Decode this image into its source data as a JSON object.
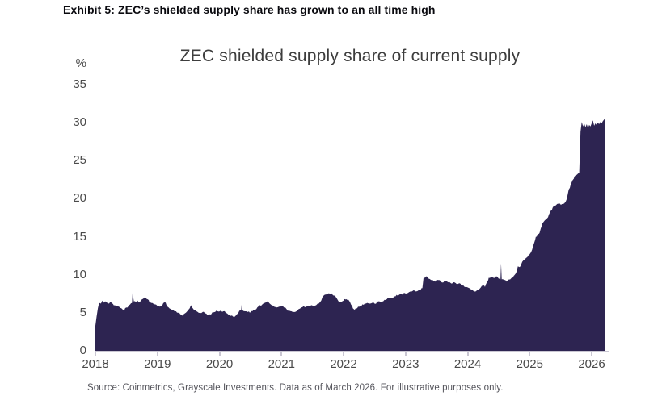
{
  "exhibit_title": "Exhibit 5: ZEC’s shielded supply share has grown to an all time high",
  "source": "Source: Coinmetrics, Grayscale Investments. Data as of March 2026. For illustrative purposes only.",
  "colors": {
    "area_fill": "#2d2451",
    "axis_line": "#c9c6d2",
    "heading_text": "#0a0a0f",
    "title_text": "#3d3d3d",
    "tick_text": "#4a4a4a",
    "source_text": "#55555c"
  },
  "chart_data": {
    "type": "area",
    "title": "ZEC shielded supply share of current supply",
    "ylabel": "%",
    "xlabel": "",
    "ylim": [
      0,
      35
    ],
    "xlim": [
      2018,
      2026.25
    ],
    "grid": false,
    "legend_position": "none",
    "y_ticks": [
      35,
      30,
      25,
      20,
      15,
      10,
      5,
      0
    ],
    "x_ticks": [
      2018,
      2019,
      2020,
      2021,
      2022,
      2023,
      2024,
      2025,
      2026
    ],
    "noise_amplitude": 0.14,
    "series": [
      {
        "name": "ZEC shielded supply share of current supply (%)",
        "points": [
          [
            2018.0,
            3.3
          ],
          [
            2018.02,
            4.5
          ],
          [
            2018.04,
            5.6
          ],
          [
            2018.06,
            6.3
          ],
          [
            2018.09,
            6.2
          ],
          [
            2018.11,
            6.6
          ],
          [
            2018.13,
            6.3
          ],
          [
            2018.16,
            6.5
          ],
          [
            2018.19,
            6.3
          ],
          [
            2018.22,
            6.2
          ],
          [
            2018.25,
            6.4
          ],
          [
            2018.28,
            6.2
          ],
          [
            2018.31,
            6.0
          ],
          [
            2018.35,
            5.9
          ],
          [
            2018.38,
            5.8
          ],
          [
            2018.42,
            5.6
          ],
          [
            2018.45,
            5.4
          ],
          [
            2018.48,
            5.6
          ],
          [
            2018.52,
            5.7
          ],
          [
            2018.56,
            6.1
          ],
          [
            2018.59,
            6.3
          ],
          [
            2018.6,
            7.6
          ],
          [
            2018.62,
            6.5
          ],
          [
            2018.65,
            6.4
          ],
          [
            2018.68,
            6.6
          ],
          [
            2018.71,
            6.4
          ],
          [
            2018.74,
            6.7
          ],
          [
            2018.78,
            6.9
          ],
          [
            2018.81,
            7.0
          ],
          [
            2018.84,
            6.8
          ],
          [
            2018.87,
            6.4
          ],
          [
            2018.9,
            6.3
          ],
          [
            2018.93,
            6.2
          ],
          [
            2018.96,
            6.1
          ],
          [
            2019.0,
            5.9
          ],
          [
            2019.04,
            5.8
          ],
          [
            2019.08,
            6.0
          ],
          [
            2019.12,
            6.4
          ],
          [
            2019.15,
            5.9
          ],
          [
            2019.18,
            5.7
          ],
          [
            2019.22,
            5.5
          ],
          [
            2019.26,
            5.3
          ],
          [
            2019.3,
            5.2
          ],
          [
            2019.34,
            5.0
          ],
          [
            2019.37,
            4.8
          ],
          [
            2019.4,
            4.6
          ],
          [
            2019.44,
            4.9
          ],
          [
            2019.48,
            5.2
          ],
          [
            2019.52,
            5.6
          ],
          [
            2019.54,
            6.0
          ],
          [
            2019.57,
            5.6
          ],
          [
            2019.61,
            5.3
          ],
          [
            2019.65,
            5.1
          ],
          [
            2019.69,
            5.0
          ],
          [
            2019.73,
            5.1
          ],
          [
            2019.77,
            4.9
          ],
          [
            2019.81,
            4.7
          ],
          [
            2019.85,
            4.8
          ],
          [
            2019.89,
            5.0
          ],
          [
            2019.93,
            5.1
          ],
          [
            2019.97,
            5.2
          ],
          [
            2020.02,
            5.3
          ],
          [
            2020.06,
            5.2
          ],
          [
            2020.1,
            5.0
          ],
          [
            2020.14,
            4.8
          ],
          [
            2020.18,
            4.6
          ],
          [
            2020.22,
            4.5
          ],
          [
            2020.26,
            4.6
          ],
          [
            2020.3,
            4.9
          ],
          [
            2020.33,
            5.3
          ],
          [
            2020.35,
            5.4
          ],
          [
            2020.36,
            6.2
          ],
          [
            2020.37,
            5.4
          ],
          [
            2020.41,
            5.2
          ],
          [
            2020.45,
            5.1
          ],
          [
            2020.49,
            5.0
          ],
          [
            2020.53,
            5.2
          ],
          [
            2020.57,
            5.4
          ],
          [
            2020.61,
            5.7
          ],
          [
            2020.65,
            6.0
          ],
          [
            2020.69,
            6.1
          ],
          [
            2020.73,
            6.3
          ],
          [
            2020.77,
            6.5
          ],
          [
            2020.8,
            6.3
          ],
          [
            2020.84,
            6.0
          ],
          [
            2020.88,
            5.8
          ],
          [
            2020.92,
            5.7
          ],
          [
            2020.96,
            5.8
          ],
          [
            2021.0,
            5.9
          ],
          [
            2021.04,
            5.7
          ],
          [
            2021.08,
            5.5
          ],
          [
            2021.12,
            5.3
          ],
          [
            2021.16,
            5.2
          ],
          [
            2021.2,
            5.1
          ],
          [
            2021.24,
            5.2
          ],
          [
            2021.28,
            5.5
          ],
          [
            2021.32,
            5.7
          ],
          [
            2021.36,
            5.9
          ],
          [
            2021.4,
            5.8
          ],
          [
            2021.44,
            5.9
          ],
          [
            2021.48,
            6.0
          ],
          [
            2021.52,
            5.9
          ],
          [
            2021.56,
            6.0
          ],
          [
            2021.6,
            6.2
          ],
          [
            2021.64,
            6.6
          ],
          [
            2021.67,
            7.2
          ],
          [
            2021.7,
            7.4
          ],
          [
            2021.74,
            7.5
          ],
          [
            2021.78,
            7.5
          ],
          [
            2021.82,
            7.4
          ],
          [
            2021.86,
            7.3
          ],
          [
            2021.89,
            6.9
          ],
          [
            2021.92,
            6.5
          ],
          [
            2021.96,
            6.4
          ],
          [
            2022.0,
            6.6
          ],
          [
            2022.04,
            6.8
          ],
          [
            2022.08,
            6.7
          ],
          [
            2022.12,
            6.1
          ],
          [
            2022.15,
            5.6
          ],
          [
            2022.18,
            5.4
          ],
          [
            2022.22,
            5.6
          ],
          [
            2022.26,
            5.8
          ],
          [
            2022.3,
            6.1
          ],
          [
            2022.34,
            6.2
          ],
          [
            2022.38,
            6.3
          ],
          [
            2022.42,
            6.2
          ],
          [
            2022.46,
            6.3
          ],
          [
            2022.5,
            6.2
          ],
          [
            2022.54,
            6.4
          ],
          [
            2022.58,
            6.5
          ],
          [
            2022.62,
            6.5
          ],
          [
            2022.66,
            6.7
          ],
          [
            2022.7,
            6.8
          ],
          [
            2022.74,
            6.9
          ],
          [
            2022.78,
            7.0
          ],
          [
            2022.82,
            7.2
          ],
          [
            2022.86,
            7.3
          ],
          [
            2022.9,
            7.4
          ],
          [
            2022.95,
            7.4
          ],
          [
            2023.0,
            7.5
          ],
          [
            2023.04,
            7.6
          ],
          [
            2023.08,
            7.8
          ],
          [
            2023.12,
            7.9
          ],
          [
            2023.16,
            7.8
          ],
          [
            2023.2,
            7.9
          ],
          [
            2023.24,
            8.0
          ],
          [
            2023.27,
            8.2
          ],
          [
            2023.29,
            9.6
          ],
          [
            2023.33,
            9.8
          ],
          [
            2023.37,
            9.5
          ],
          [
            2023.41,
            9.3
          ],
          [
            2023.45,
            9.2
          ],
          [
            2023.49,
            9.1
          ],
          [
            2023.53,
            9.3
          ],
          [
            2023.57,
            9.1
          ],
          [
            2023.61,
            9.0
          ],
          [
            2023.65,
            9.2
          ],
          [
            2023.69,
            9.0
          ],
          [
            2023.73,
            8.9
          ],
          [
            2023.77,
            9.0
          ],
          [
            2023.81,
            8.9
          ],
          [
            2023.85,
            8.8
          ],
          [
            2023.89,
            8.7
          ],
          [
            2023.93,
            8.6
          ],
          [
            2023.97,
            8.4
          ],
          [
            2024.01,
            8.3
          ],
          [
            2024.05,
            8.1
          ],
          [
            2024.09,
            7.9
          ],
          [
            2024.13,
            7.8
          ],
          [
            2024.17,
            8.0
          ],
          [
            2024.21,
            8.3
          ],
          [
            2024.25,
            8.6
          ],
          [
            2024.28,
            8.4
          ],
          [
            2024.31,
            9.0
          ],
          [
            2024.34,
            9.6
          ],
          [
            2024.38,
            9.7
          ],
          [
            2024.42,
            9.6
          ],
          [
            2024.46,
            9.8
          ],
          [
            2024.5,
            9.5
          ],
          [
            2024.53,
            9.4
          ],
          [
            2024.54,
            11.5
          ],
          [
            2024.55,
            9.4
          ],
          [
            2024.59,
            9.3
          ],
          [
            2024.63,
            9.1
          ],
          [
            2024.67,
            9.4
          ],
          [
            2024.71,
            9.6
          ],
          [
            2024.75,
            9.9
          ],
          [
            2024.79,
            10.4
          ],
          [
            2024.81,
            11.1
          ],
          [
            2024.84,
            11.0
          ],
          [
            2024.88,
            11.7
          ],
          [
            2024.92,
            12.0
          ],
          [
            2024.96,
            12.3
          ],
          [
            2025.0,
            12.7
          ],
          [
            2025.04,
            13.3
          ],
          [
            2025.07,
            14.1
          ],
          [
            2025.1,
            15.0
          ],
          [
            2025.13,
            15.3
          ],
          [
            2025.16,
            15.5
          ],
          [
            2025.19,
            16.3
          ],
          [
            2025.22,
            16.9
          ],
          [
            2025.25,
            17.2
          ],
          [
            2025.28,
            17.4
          ],
          [
            2025.31,
            17.9
          ],
          [
            2025.34,
            18.4
          ],
          [
            2025.37,
            18.8
          ],
          [
            2025.4,
            19.1
          ],
          [
            2025.44,
            19.3
          ],
          [
            2025.48,
            19.4
          ],
          [
            2025.52,
            19.3
          ],
          [
            2025.56,
            19.4
          ],
          [
            2025.6,
            20.0
          ],
          [
            2025.63,
            21.2
          ],
          [
            2025.66,
            21.8
          ],
          [
            2025.69,
            22.4
          ],
          [
            2025.72,
            22.9
          ],
          [
            2025.75,
            23.1
          ],
          [
            2025.78,
            23.3
          ],
          [
            2025.8,
            23.4
          ],
          [
            2025.82,
            28.8
          ],
          [
            2025.84,
            30.1
          ],
          [
            2025.86,
            29.5
          ],
          [
            2025.88,
            29.9
          ],
          [
            2025.9,
            29.4
          ],
          [
            2025.92,
            29.8
          ],
          [
            2025.94,
            29.3
          ],
          [
            2025.96,
            29.7
          ],
          [
            2025.98,
            29.5
          ],
          [
            2026.0,
            29.9
          ],
          [
            2026.02,
            30.3
          ],
          [
            2026.04,
            29.6
          ],
          [
            2026.06,
            29.9
          ],
          [
            2026.08,
            29.7
          ],
          [
            2026.1,
            30.0
          ],
          [
            2026.12,
            29.8
          ],
          [
            2026.14,
            30.1
          ],
          [
            2026.16,
            29.9
          ],
          [
            2026.18,
            30.2
          ],
          [
            2026.2,
            30.4
          ],
          [
            2026.22,
            30.6
          ]
        ]
      }
    ]
  }
}
